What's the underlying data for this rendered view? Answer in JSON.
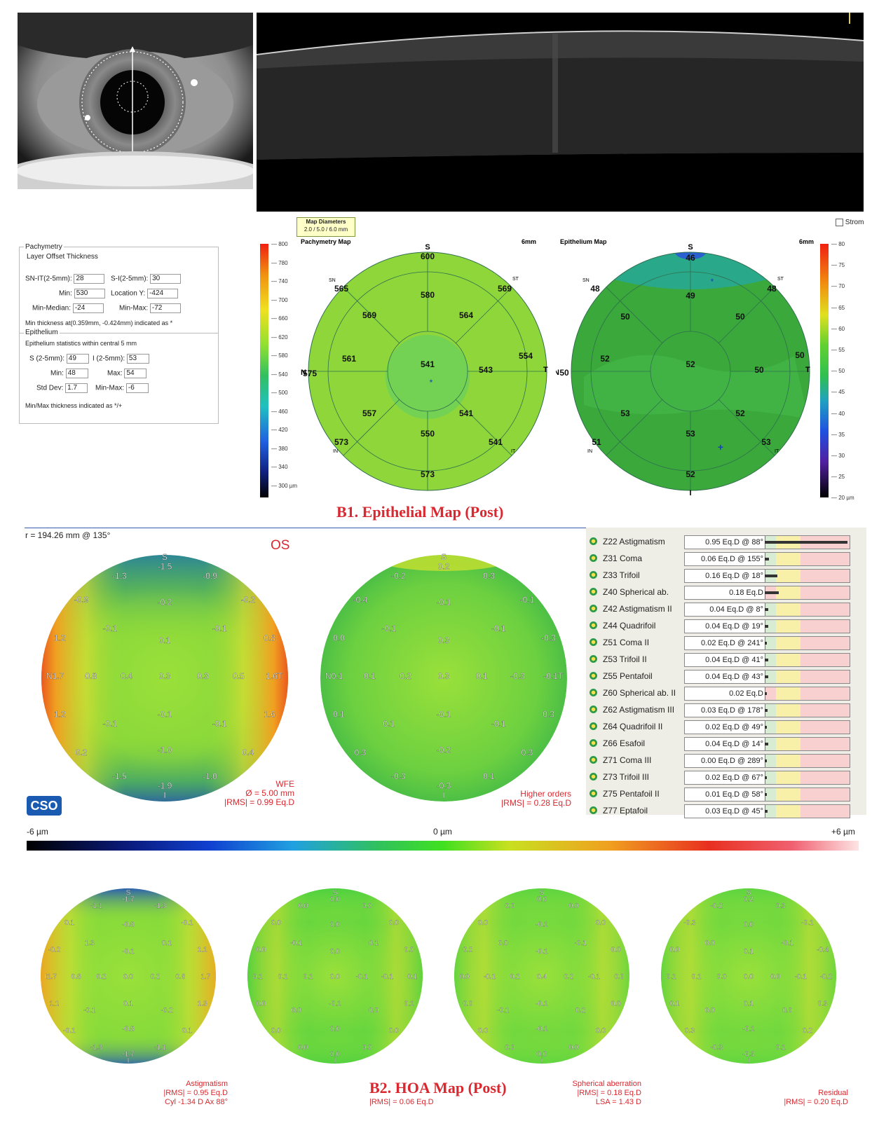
{
  "pachymetry_panel": {
    "title": "Pachymetry",
    "subtitle": "Layer Offset Thickness",
    "sn_it_label": "SN-IT(2-5mm):",
    "sn_it_value": "28",
    "s_i_label": "S-I(2-5mm):",
    "s_i_value": "30",
    "min_label": "Min:",
    "min_value": "530",
    "location_y_label": "Location Y:",
    "location_y_value": "-424",
    "min_median_label": "Min-Median:",
    "min_median_value": "-24",
    "min_max_label": "Min-Max:",
    "min_max_value": "-72",
    "min_thickness_note": "Min thickness at(0.359mm, -0.424mm) indicated as *",
    "epithelium_title": "Epithelium",
    "epithelium_stats_note": "Epithelium statistics within central 5 mm",
    "s_label": "S (2-5mm):",
    "s_value": "49",
    "i_label": "I (2-5mm):",
    "i_value": "53",
    "ep_min_label": "Min:",
    "ep_min_value": "48",
    "ep_max_label": "Max:",
    "ep_max_value": "54",
    "std_dev_label": "Std Dev:",
    "std_dev_value": "1.7",
    "ep_min_max_label": "Min-Max:",
    "ep_min_max_value": "-6",
    "minmax_note": "Min/Max thickness indicated as */+"
  },
  "map_diameters": {
    "title": "Map Diameters",
    "value": "2.0 / 5.0 / 6.0 mm"
  },
  "stroma_checkbox": "Strom",
  "pachy_scale": [
    "800",
    "780",
    "740",
    "700",
    "660",
    "620",
    "580",
    "540",
    "500",
    "460",
    "420",
    "380",
    "340",
    "300 µm"
  ],
  "epi_scale": [
    "80",
    "75",
    "70",
    "65",
    "60",
    "55",
    "50",
    "45",
    "40",
    "35",
    "30",
    "25",
    "20 µm"
  ],
  "pachymetry_map": {
    "title": "Pachymetry Map",
    "diameter": "6mm",
    "orient": {
      "s": "S",
      "n": "N",
      "t": "T",
      "sn": "SN",
      "st": "ST",
      "in": "IN",
      "it": "IT"
    },
    "values": {
      "top": "600",
      "upper_mid": "580",
      "sn": "565",
      "st": "569",
      "ul": "569",
      "ur": "564",
      "l": "561",
      "c": "541",
      "r": "543",
      "far_l": "575",
      "far_r": "554",
      "ll": "557",
      "lr": "541",
      "low_mid": "550",
      "in": "573",
      "it": "541",
      "bottom": "573"
    },
    "colors": {
      "base": "#8fd63a",
      "center": "#6ccf5a"
    }
  },
  "epithelium_map": {
    "title": "Epithelium Map",
    "diameter": "6mm",
    "orient": {
      "s": "S",
      "n": "N",
      "t": "T",
      "i": "I",
      "sn": "SN",
      "st": "ST",
      "in": "IN",
      "it": "IT"
    },
    "values": {
      "top": "46",
      "sn": "48",
      "st": "48",
      "upper_mid": "49",
      "ul": "50",
      "ur": "50",
      "far_l": "50",
      "far_r": "50",
      "l": "52",
      "c": "52",
      "r": "50",
      "ll": "53",
      "lr": "52",
      "in": "51",
      "low_mid": "53",
      "it": "53",
      "bottom": "52"
    },
    "colors": {
      "base": "#3aa83a",
      "top_band": "#2aa88a"
    }
  },
  "captions": {
    "b1": "B1. Epithelial Map (Post)",
    "b2": "B2. HOA Map (Post)"
  },
  "radius_label": "r = 194.26 mm @ 135°",
  "eye_label": "OS",
  "wfe_map": {
    "labels": [
      "S",
      "-1.5",
      "-1.3",
      "-0.9",
      "-0.9",
      "-0.2",
      "-0.2",
      "-0.1",
      "-0.1",
      "1.2",
      "0.1",
      "0.8",
      "N1.7",
      "0.8",
      "0.4",
      "0.3",
      "0.3",
      "0.5",
      "1.6T",
      "1.2",
      "-0.1",
      "-0.1",
      "-0.1",
      "1.6",
      "0.2",
      "-1.0",
      "0.4",
      "-1.5",
      "-1.9",
      "-1.0",
      "I"
    ],
    "caption_title": "WFE",
    "diameter": "Ø = 5.00 mm",
    "rms": "|RMS| = 0.99 Eq.D"
  },
  "higher_orders_map": {
    "labels": [
      "S",
      "0.2",
      "-0.2",
      "0.3",
      "-0.4",
      "-0.1",
      "-0.1",
      "-0.1",
      "-0.1",
      "0.0",
      "0.3",
      "-0.3",
      "N0.1",
      "0.1",
      "0.2",
      "0.3",
      "0.1",
      "-0.3",
      "-0.1T",
      "0.1",
      "0.1",
      "-0.1",
      "-0.1",
      "0.3",
      "0.3",
      "-0.2",
      "0.3",
      "-0.3",
      "-0.3",
      "0.1",
      "I"
    ],
    "caption_title": "Higher orders",
    "rms": "|RMS| = 0.28 Eq.D"
  },
  "zernike": [
    {
      "name": "Z22 Astigmatism",
      "value": "0.95 Eq.D @ 88°",
      "frac": 1.0
    },
    {
      "name": "Z31 Coma",
      "value": "0.06 Eq.D @ 155°",
      "frac": 0.05
    },
    {
      "name": "Z33 Trifoil",
      "value": "0.16 Eq.D @ 18°",
      "frac": 0.15
    },
    {
      "name": "Z40 Spherical ab.",
      "value": "0.18 Eq.D",
      "frac": 0.17
    },
    {
      "name": "Z42 Astigmatism II",
      "value": "0.04 Eq.D @ 8°",
      "frac": 0.04
    },
    {
      "name": "Z44 Quadrifoil",
      "value": "0.04 Eq.D @ 19°",
      "frac": 0.04
    },
    {
      "name": "Z51 Coma II",
      "value": "0.02 Eq.D @ 241°",
      "frac": 0.02
    },
    {
      "name": "Z53 Trifoil II",
      "value": "0.04 Eq.D @ 41°",
      "frac": 0.04
    },
    {
      "name": "Z55 Pentafoil",
      "value": "0.04 Eq.D @ 43°",
      "frac": 0.04
    },
    {
      "name": "Z60 Spherical ab. II",
      "value": "0.02 Eq.D",
      "frac": 0.02
    },
    {
      "name": "Z62 Astigmatism III",
      "value": "0.03 Eq.D @ 178°",
      "frac": 0.03
    },
    {
      "name": "Z64 Quadrifoil II",
      "value": "0.02 Eq.D @ 49°",
      "frac": 0.02
    },
    {
      "name": "Z66 Esafoil",
      "value": "0.04 Eq.D @ 14°",
      "frac": 0.04
    },
    {
      "name": "Z71 Coma III",
      "value": "0.00 Eq.D @ 289°",
      "frac": 0.0
    },
    {
      "name": "Z73 Trifoil III",
      "value": "0.02 Eq.D @ 67°",
      "frac": 0.02
    },
    {
      "name": "Z75 Pentafoil II",
      "value": "0.01 Eq.D @ 58°",
      "frac": 0.01
    },
    {
      "name": "Z77 Eptafoil",
      "value": "0.03 Eq.D @ 45°",
      "frac": 0.03
    }
  ],
  "logo": "CSO",
  "colorbar": {
    "min": "-6 µm",
    "mid": "0 µm",
    "max": "+6 µm"
  },
  "small_maps": [
    {
      "labels": [
        "S",
        "-1.7",
        "-1.1",
        "-1.3",
        "0.1",
        "-0.8",
        "-0.1",
        "1.3",
        "0.1",
        "-0.2",
        "-0.1",
        "1.1",
        "I1.7",
        "0.8",
        "0.2",
        "0.0",
        "0.2",
        "0.8",
        "1.7",
        "1.1",
        "-0.1",
        "-0.2",
        "0.1",
        "1.3",
        "-0.1",
        "-0.8",
        "0.1",
        "-1.3",
        "-1.7",
        "-1.1",
        "I"
      ],
      "caption": [
        "Astigmatism",
        "|RMS| = 0.95 Eq.D",
        "Cyl -1.34 D Ax 88°"
      ],
      "tone": "astig"
    },
    {
      "labels": [
        "S",
        "0.0",
        "0.0",
        "0.0",
        "0.0",
        "0.0",
        "0.0",
        "-0.1",
        "0.1",
        "0.0",
        "0.0",
        "0.0",
        "0.1",
        "0.1",
        "0.1",
        "0.0",
        "-0.1",
        "-0.1",
        "0.1",
        "0.0",
        "0.0",
        "0.0",
        "-0.1",
        "0.1",
        "0.0",
        "0.0",
        "0.0",
        "0.0",
        "0.0",
        "0.0",
        "I"
      ],
      "caption": [
        "|RMS| = 0.06 Eq.D"
      ],
      "tone": "flat"
    },
    {
      "labels": [
        "S",
        "0.0",
        "0.0",
        "0.0",
        "0.0",
        "-0.1",
        "0.0",
        "0.0",
        "-0.1",
        "0.2",
        "-0.1",
        "0.0",
        "0.0",
        "-0.1",
        "0.2",
        "0.4",
        "0.2",
        "-0.1",
        "0.0",
        "0.0",
        "-0.1",
        "0.2",
        "-0.1",
        "0.0",
        "0.0",
        "-0.1",
        "0.0",
        "0.0",
        "0.0",
        "0.0",
        "I"
      ],
      "caption": [
        "Spherical aberration",
        "|RMS| = 0.18 Eq.D",
        "LSA = 1.43 D"
      ],
      "tone": "sph"
    },
    {
      "labels": [
        "S",
        "0.2",
        "-0.2",
        "0.3",
        "-0.3",
        "0.0",
        "-0.1",
        "0.0",
        "-0.1",
        "0.0",
        "0.1",
        "-0.4",
        "0.1",
        "0.1",
        "0.0",
        "0.0",
        "0.0",
        "-0.1",
        "-0.2",
        "0.1",
        "0.0",
        "0.0",
        "0.1",
        "0.3",
        "0.3",
        "-0.1",
        "0.2",
        "-0.3",
        "-0.3",
        "0.1",
        "I"
      ],
      "caption": [
        "Residual",
        "|RMS| = 0.20 Eq.D"
      ],
      "tone": "res"
    }
  ]
}
